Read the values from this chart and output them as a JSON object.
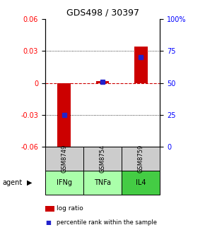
{
  "title": "GDS498 / 30397",
  "samples": [
    "GSM8749",
    "GSM8754",
    "GSM8759"
  ],
  "agents": [
    "IFNg",
    "TNFa",
    "IL4"
  ],
  "log_ratios": [
    -0.068,
    0.002,
    0.034
  ],
  "percentile_ranks": [
    25,
    51,
    70
  ],
  "ylim_left": [
    -0.06,
    0.06
  ],
  "ylim_right": [
    0,
    100
  ],
  "yticks_left": [
    -0.06,
    -0.03,
    0,
    0.03,
    0.06
  ],
  "ytick_labels_left": [
    "-0.06",
    "-0.03",
    "0",
    "0.03",
    "0.06"
  ],
  "yticks_right": [
    0,
    25,
    50,
    75,
    100
  ],
  "ytick_labels_right": [
    "0",
    "25",
    "50",
    "75",
    "100%"
  ],
  "bar_color": "#cc0000",
  "dot_color": "#2222cc",
  "zero_line_color": "#cc0000",
  "sample_bg": "#cccccc",
  "agent_colors": {
    "IFNg": "#aaffaa",
    "TNFa": "#aaffaa",
    "IL4": "#44cc44"
  },
  "bar_width": 0.35
}
